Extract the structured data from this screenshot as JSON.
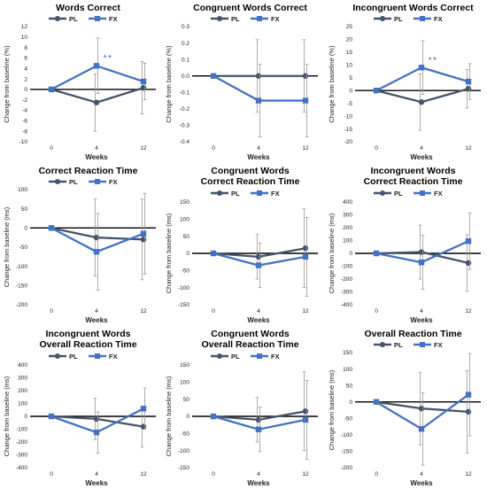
{
  "colors": {
    "PL": "#44546a",
    "FX": "#4472c4"
  },
  "chart_data": [
    {
      "type": "line",
      "title": "Words Correct",
      "ylabel": "Change from baseline (%)",
      "xlabel": "Weeks",
      "categories": [
        "0",
        "4",
        "12"
      ],
      "ylim": [
        -10,
        12
      ],
      "yticks": [
        -10,
        -8,
        -6,
        -4,
        -2,
        0,
        2,
        4,
        6,
        8,
        10,
        12
      ],
      "legend_position": "top",
      "series": [
        {
          "name": "PL",
          "values": [
            0,
            -2.5,
            0.3
          ],
          "err": [
            0,
            5.5,
            5.0
          ]
        },
        {
          "name": "FX",
          "values": [
            0,
            4.5,
            1.5
          ],
          "err": [
            0,
            5.3,
            3.5
          ]
        }
      ],
      "annotations": [
        {
          "text": "* *",
          "x": "4",
          "y": 5.6
        }
      ]
    },
    {
      "type": "line",
      "title": "Congruent Words Correct",
      "ylabel": "Change from baseline (%)",
      "xlabel": "Weeks",
      "categories": [
        "0",
        "4",
        "12"
      ],
      "ylim": [
        -0.4,
        0.3
      ],
      "yticks": [
        -0.4,
        -0.3,
        -0.2,
        -0.1,
        0.0,
        0.1,
        0.2,
        0.3
      ],
      "legend_position": "top",
      "series": [
        {
          "name": "PL",
          "values": [
            0,
            0,
            0
          ],
          "err": [
            0,
            0.22,
            0.22
          ]
        },
        {
          "name": "FX",
          "values": [
            0,
            -0.15,
            -0.15
          ],
          "err": [
            0,
            0.22,
            0.22
          ]
        }
      ]
    },
    {
      "type": "line",
      "title": "Incongruent Words Correct",
      "ylabel": "Change from baseline (%)",
      "xlabel": "Weeks",
      "categories": [
        "0",
        "4",
        "12"
      ],
      "ylim": [
        -20,
        25
      ],
      "yticks": [
        -20,
        -15,
        -10,
        -5,
        0,
        5,
        10,
        15,
        20,
        25
      ],
      "legend_position": "top",
      "series": [
        {
          "name": "PL",
          "values": [
            0,
            -4.5,
            0.7
          ],
          "err": [
            0,
            11.0,
            7.5
          ]
        },
        {
          "name": "FX",
          "values": [
            0,
            9.0,
            3.5
          ],
          "err": [
            0,
            10.5,
            7.0
          ]
        }
      ],
      "annotations": [
        {
          "text": "* *",
          "x": "4",
          "y": 11.0
        }
      ]
    },
    {
      "type": "line",
      "title": "Correct Reaction Time",
      "ylabel": "Change from baseline (ms)",
      "xlabel": "Weeks",
      "categories": [
        "0",
        "4",
        "12"
      ],
      "ylim": [
        -200,
        100
      ],
      "yticks": [
        -200,
        -150,
        -100,
        -50,
        0,
        50,
        100
      ],
      "legend_position": "top",
      "series": [
        {
          "name": "PL",
          "values": [
            0,
            -25,
            -30
          ],
          "err": [
            0,
            100,
            105
          ]
        },
        {
          "name": "FX",
          "values": [
            0,
            -62,
            -15
          ],
          "err": [
            0,
            100,
            105
          ]
        }
      ]
    },
    {
      "type": "line",
      "title": "Congruent Words Correct Reaction Time",
      "ylabel": "Change from baseline (ms)",
      "xlabel": "Weeks",
      "categories": [
        "0",
        "4",
        "12"
      ],
      "ylim": [
        -150,
        150
      ],
      "yticks": [
        -150,
        -100,
        -50,
        0,
        50,
        100,
        150
      ],
      "legend_position": "top",
      "series": [
        {
          "name": "PL",
          "values": [
            0,
            -10,
            15
          ],
          "err": [
            0,
            65,
            115
          ]
        },
        {
          "name": "FX",
          "values": [
            0,
            -35,
            -10
          ],
          "err": [
            0,
            65,
            115
          ]
        }
      ]
    },
    {
      "type": "line",
      "title": "Incongruent Words Correct Reaction Time",
      "ylabel": "Change from baseline (ms)",
      "xlabel": "Weeks",
      "categories": [
        "0",
        "4",
        "12"
      ],
      "ylim": [
        -400,
        400
      ],
      "yticks": [
        -400,
        -300,
        -200,
        -100,
        0,
        100,
        200,
        300,
        400
      ],
      "legend_position": "top",
      "series": [
        {
          "name": "PL",
          "values": [
            0,
            10,
            -75
          ],
          "err": [
            0,
            210,
            220
          ]
        },
        {
          "name": "FX",
          "values": [
            0,
            -70,
            95
          ],
          "err": [
            0,
            210,
            220
          ]
        }
      ]
    },
    {
      "type": "line",
      "title": "Incongruent Words Overall Reaction Time",
      "ylabel": "Change from baseline (ms)",
      "xlabel": "Weeks",
      "categories": [
        "0",
        "4",
        "12"
      ],
      "ylim": [
        -400,
        400
      ],
      "yticks": [
        -400,
        -300,
        -200,
        -100,
        0,
        100,
        200,
        300,
        400
      ],
      "legend_position": "top",
      "series": [
        {
          "name": "PL",
          "values": [
            0,
            -20,
            -80
          ],
          "err": [
            0,
            160,
            160
          ]
        },
        {
          "name": "FX",
          "values": [
            0,
            -125,
            60
          ],
          "err": [
            0,
            160,
            160
          ]
        }
      ]
    },
    {
      "type": "line",
      "title": "Congruent Words Overall Reaction Time",
      "ylabel": "Change from baseline (ms)",
      "xlabel": "Weeks",
      "categories": [
        "0",
        "4",
        "12"
      ],
      "ylim": [
        -150,
        150
      ],
      "yticks": [
        -150,
        -100,
        -50,
        0,
        50,
        100,
        150
      ],
      "legend_position": "top",
      "series": [
        {
          "name": "PL",
          "values": [
            0,
            -10,
            15
          ],
          "err": [
            0,
            65,
            115
          ]
        },
        {
          "name": "FX",
          "values": [
            0,
            -38,
            -10
          ],
          "err": [
            0,
            65,
            115
          ]
        }
      ]
    },
    {
      "type": "line",
      "title": "Overall Reaction Time",
      "ylabel": "Change from baseline (ms)",
      "xlabel": "Weeks",
      "categories": [
        "0",
        "4",
        "12"
      ],
      "ylim": [
        -200,
        150
      ],
      "yticks": [
        -200,
        -150,
        -100,
        -50,
        0,
        50,
        100,
        150
      ],
      "legend_position": "top",
      "series": [
        {
          "name": "PL",
          "values": [
            0,
            -20,
            -30
          ],
          "err": [
            0,
            110,
            125
          ]
        },
        {
          "name": "FX",
          "values": [
            0,
            -82,
            22
          ],
          "err": [
            0,
            110,
            125
          ]
        }
      ]
    }
  ]
}
